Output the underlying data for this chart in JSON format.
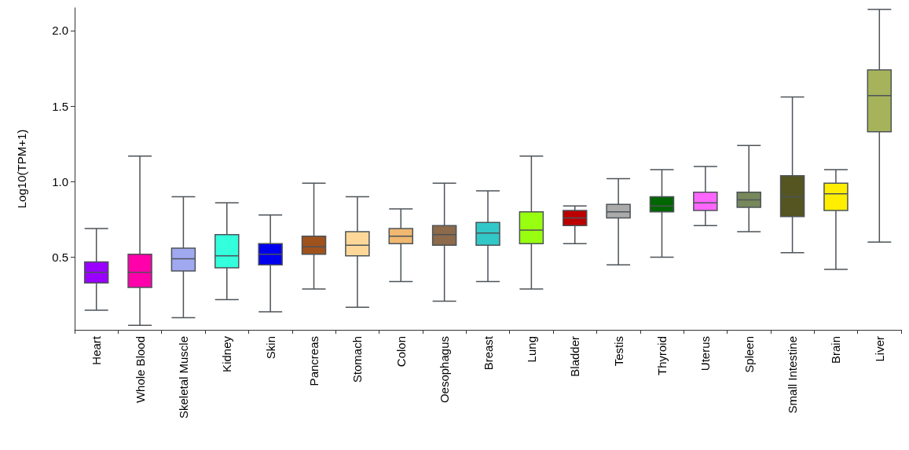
{
  "chart_data": {
    "type": "box",
    "ylabel": "Log10(TPM+1)",
    "categories": [
      "Heart",
      "Whole Blood",
      "Skeletal Muscle",
      "Kidney",
      "Skin",
      "Pancreas",
      "Stomach",
      "Colon",
      "Oesophagus",
      "Breast",
      "Lung",
      "Bladder",
      "Testis",
      "Thyroid",
      "Uterus",
      "Spleen",
      "Small Intestine",
      "Brain",
      "Liver"
    ],
    "boxes": [
      {
        "low": 0.15,
        "q1": 0.33,
        "median": 0.4,
        "q3": 0.47,
        "high": 0.69
      },
      {
        "low": 0.05,
        "q1": 0.3,
        "median": 0.4,
        "q3": 0.52,
        "high": 1.17
      },
      {
        "low": 0.1,
        "q1": 0.41,
        "median": 0.49,
        "q3": 0.56,
        "high": 0.9
      },
      {
        "low": 0.22,
        "q1": 0.43,
        "median": 0.51,
        "q3": 0.65,
        "high": 0.86
      },
      {
        "low": 0.14,
        "q1": 0.45,
        "median": 0.52,
        "q3": 0.59,
        "high": 0.78
      },
      {
        "low": 0.29,
        "q1": 0.52,
        "median": 0.57,
        "q3": 0.64,
        "high": 0.99
      },
      {
        "low": 0.17,
        "q1": 0.51,
        "median": 0.58,
        "q3": 0.67,
        "high": 0.9
      },
      {
        "low": 0.34,
        "q1": 0.59,
        "median": 0.64,
        "q3": 0.69,
        "high": 0.82
      },
      {
        "low": 0.21,
        "q1": 0.58,
        "median": 0.65,
        "q3": 0.71,
        "high": 0.99
      },
      {
        "low": 0.34,
        "q1": 0.58,
        "median": 0.66,
        "q3": 0.73,
        "high": 0.94
      },
      {
        "low": 0.29,
        "q1": 0.59,
        "median": 0.68,
        "q3": 0.8,
        "high": 1.17
      },
      {
        "low": 0.59,
        "q1": 0.71,
        "median": 0.76,
        "q3": 0.81,
        "high": 0.84
      },
      {
        "low": 0.45,
        "q1": 0.76,
        "median": 0.8,
        "q3": 0.85,
        "high": 1.02
      },
      {
        "low": 0.5,
        "q1": 0.8,
        "median": 0.84,
        "q3": 0.9,
        "high": 1.08
      },
      {
        "low": 0.71,
        "q1": 0.81,
        "median": 0.86,
        "q3": 0.93,
        "high": 1.1
      },
      {
        "low": 0.67,
        "q1": 0.83,
        "median": 0.88,
        "q3": 0.93,
        "high": 1.24
      },
      {
        "low": 0.53,
        "q1": 0.77,
        "median": 0.9,
        "q3": 1.04,
        "high": 1.56
      },
      {
        "low": 0.42,
        "q1": 0.81,
        "median": 0.92,
        "q3": 0.99,
        "high": 1.08
      },
      {
        "low": 0.6,
        "q1": 1.33,
        "median": 1.57,
        "q3": 1.74,
        "high": 2.14
      }
    ],
    "colors": [
      "#9900ff",
      "#ff00aa",
      "#a0a8f0",
      "#33ffdd",
      "#0000ee",
      "#a0521d",
      "#ffd899",
      "#f0b870",
      "#8c6a4a",
      "#33c8c8",
      "#99ff11",
      "#bb0000",
      "#aaaaaa",
      "#006600",
      "#ff66ff",
      "#77885a",
      "#555522",
      "#ffee00",
      "#a6b35a"
    ],
    "ylim": [
      0.02,
      2.15
    ],
    "yticks": [
      {
        "value": 0.5,
        "label": "0.5"
      },
      {
        "value": 1,
        "label": "1.0"
      },
      {
        "value": 1.5,
        "label": "1.5"
      },
      {
        "value": 2,
        "label": "2.0"
      }
    ],
    "grid": false
  }
}
